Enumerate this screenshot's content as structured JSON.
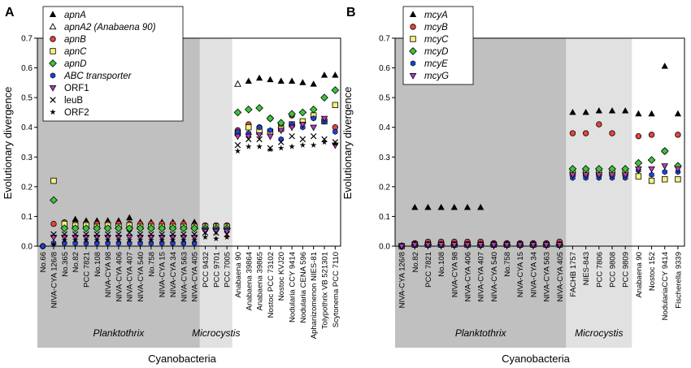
{
  "figure": {
    "x_axis_label": "Cyanobacteria",
    "y_axis_label": "Evolutionary divergence"
  },
  "chart_data": [
    {
      "panel_label": "A",
      "type": "scatter",
      "ylabel": "Evolutionary divergence",
      "xlabel": "Cyanobacteria",
      "ylim": [
        0,
        0.7
      ],
      "yticks": [
        "0.0",
        "0.1",
        "0.2",
        "0.3",
        "0.4",
        "0.5",
        "0.6",
        "0.7"
      ],
      "categories": [
        "No.66",
        "NIVA-CYA 126/8",
        "No.365",
        "No.82",
        "PCC 7821",
        "No.108",
        "NIVA-CYA 98",
        "NIVA-CYA 406",
        "NIVA-CYA 407",
        "NIVA-CYA 540",
        "No.758",
        "NIVA-CYA 15",
        "NIVA-CYA 34",
        "NIVA-CYA 563",
        "NIVA-CYA 405",
        "PCC 9432",
        "PCC 9701",
        "PCC 7005",
        "Anabaena 90",
        "Anabaena 39864",
        "Anabaena 39865",
        "Nostoc PCC 73102",
        "Nostoc KVJ20",
        "Nodularia CCY 9414",
        "Nodularia CENA 596",
        "Aphanizomenon NIES-81",
        "Tolypothrix VB 521301",
        "Scytonema PCC 7110"
      ],
      "groups": [
        {
          "label": "Planktothrix",
          "start": 0,
          "end": 14,
          "shade": "#c0c0c0"
        },
        {
          "label": "Microcystis",
          "start": 15,
          "end": 17,
          "shade": "#e1e1e1"
        }
      ],
      "legend": [
        "apnA",
        "apnA2 (Anabaena 90)",
        "apnB",
        "apnC",
        "apnD",
        "ABC transporter",
        "ORF1",
        "leuB",
        "ORF2"
      ],
      "series": [
        {
          "name": "apnA",
          "marker": "triangle",
          "color": "#000000",
          "values": [
            null,
            null,
            null,
            0.09,
            0.085,
            0.085,
            0.085,
            0.085,
            0.095,
            0.08,
            0.08,
            0.08,
            0.08,
            0.08,
            0.08,
            null,
            null,
            null,
            null,
            0.555,
            0.565,
            0.56,
            0.555,
            0.555,
            0.55,
            0.545,
            0.575,
            0.575
          ]
        },
        {
          "name": "apnA2",
          "label": "apnA2 (Anabaena 90)",
          "marker": "triangle-open",
          "color": "#000000",
          "values": [
            null,
            null,
            null,
            null,
            null,
            null,
            null,
            null,
            null,
            null,
            null,
            null,
            null,
            null,
            null,
            null,
            null,
            null,
            0.545,
            null,
            null,
            null,
            null,
            null,
            null,
            null,
            null,
            null
          ]
        },
        {
          "name": "apnB",
          "marker": "circle",
          "color": "#e8433f",
          "values": [
            0.0,
            0.075,
            0.08,
            0.075,
            0.075,
            0.075,
            0.075,
            0.075,
            0.075,
            0.075,
            0.075,
            0.075,
            0.075,
            0.075,
            0.07,
            0.07,
            0.07,
            0.07,
            0.39,
            0.41,
            0.4,
            0.43,
            0.41,
            0.44,
            0.42,
            0.44,
            0.42,
            0.4
          ]
        },
        {
          "name": "apnC",
          "marker": "square",
          "color": "#f5f37a",
          "values": [
            null,
            0.22,
            0.075,
            0.07,
            0.07,
            0.065,
            0.07,
            0.065,
            0.07,
            0.065,
            0.065,
            0.065,
            0.065,
            0.065,
            0.065,
            0.065,
            0.065,
            0.065,
            0.38,
            0.4,
            0.385,
            0.385,
            0.395,
            0.41,
            0.42,
            0.44,
            0.42,
            0.475
          ]
        },
        {
          "name": "apnD",
          "marker": "diamond",
          "color": "#3cc43c",
          "values": [
            null,
            0.155,
            0.06,
            0.06,
            0.06,
            0.06,
            0.06,
            0.06,
            0.06,
            0.06,
            0.06,
            0.06,
            0.06,
            0.06,
            0.06,
            0.06,
            0.06,
            0.06,
            0.45,
            0.46,
            0.465,
            0.43,
            0.415,
            0.445,
            0.45,
            0.46,
            0.5,
            0.525
          ]
        },
        {
          "name": "ABC transporter",
          "marker": "hexagon",
          "color": "#1f3fd6",
          "values": [
            0.0,
            0.01,
            0.01,
            0.01,
            0.01,
            0.01,
            0.01,
            0.01,
            0.01,
            0.01,
            0.01,
            0.01,
            0.01,
            0.01,
            0.01,
            0.055,
            0.055,
            0.055,
            0.385,
            0.38,
            0.4,
            0.39,
            0.36,
            0.41,
            0.4,
            0.43,
            0.42,
            0.385
          ]
        },
        {
          "name": "ORF1",
          "marker": "triangle-down",
          "color": "#b43cc0",
          "values": [
            null,
            0.03,
            0.03,
            0.03,
            0.03,
            0.03,
            0.03,
            0.03,
            0.03,
            0.03,
            0.03,
            0.03,
            0.03,
            0.03,
            0.03,
            0.05,
            0.05,
            0.05,
            0.37,
            0.37,
            0.375,
            0.37,
            0.39,
            0.4,
            0.41,
            0.4,
            0.43,
            0.34
          ]
        },
        {
          "name": "leuB",
          "marker": "x",
          "color": "#000000",
          "values": [
            null,
            0.04,
            0.04,
            0.04,
            0.04,
            0.04,
            0.04,
            0.04,
            0.045,
            0.04,
            0.04,
            0.04,
            0.04,
            0.04,
            0.04,
            0.045,
            0.045,
            0.04,
            0.34,
            0.36,
            0.36,
            0.33,
            0.35,
            0.37,
            0.36,
            0.37,
            0.36,
            0.35
          ]
        },
        {
          "name": "ORF2",
          "marker": "star",
          "color": "#000000",
          "values": [
            null,
            0.005,
            0.02,
            0.02,
            0.02,
            0.02,
            0.02,
            0.02,
            0.02,
            0.02,
            0.02,
            0.02,
            0.02,
            0.02,
            0.02,
            0.03,
            0.025,
            0.03,
            0.32,
            0.335,
            0.335,
            0.325,
            0.33,
            0.335,
            0.34,
            0.34,
            0.35,
            0.345
          ]
        }
      ]
    },
    {
      "panel_label": "B",
      "type": "scatter",
      "ylabel": "Evolutionary divergence",
      "xlabel": "Cyanobacteria",
      "ylim": [
        0,
        0.7
      ],
      "yticks": [
        "0.0",
        "0.1",
        "0.2",
        "0.3",
        "0.4",
        "0.5",
        "0.6",
        "0.7"
      ],
      "categories": [
        "NIVA-CYA 126/8",
        "No.82",
        "PCC 7821",
        "No.108",
        "NIVA-CYA 98",
        "NIVA-CYA 406",
        "NIVA-CYA 407",
        "NIVA-CYA 540",
        "No.758",
        "NIVA-CYA 15",
        "NIVA-CYA 34",
        "NIVA-CYA 563",
        "NIVA-CYA 405",
        "FACHB 1757",
        "NIES-843",
        "PCC 7806",
        "PCC 9808",
        "PCC 9809",
        "Anabaena 90",
        "Nostoc 152",
        "NodulariaCCY 9414",
        "Fischerella 9339"
      ],
      "groups": [
        {
          "label": "Planktothrix",
          "start": 0,
          "end": 12,
          "shade": "#c0c0c0"
        },
        {
          "label": "Microcystis",
          "start": 13,
          "end": 17,
          "shade": "#e1e1e1"
        }
      ],
      "legend": [
        "mcyA",
        "mcyB",
        "mcyC",
        "mcyD",
        "mcyE",
        "mcyG"
      ],
      "series": [
        {
          "name": "mcyA",
          "marker": "triangle",
          "color": "#000000",
          "values": [
            null,
            0.13,
            0.13,
            0.13,
            0.13,
            0.13,
            0.13,
            null,
            null,
            null,
            null,
            null,
            null,
            0.45,
            0.45,
            0.455,
            0.455,
            0.455,
            0.445,
            0.445,
            0.605,
            0.445
          ]
        },
        {
          "name": "mcyB",
          "marker": "circle",
          "color": "#e8433f",
          "values": [
            0.0,
            0.01,
            0.015,
            0.015,
            0.015,
            0.015,
            0.015,
            0.01,
            0.01,
            0.01,
            0.01,
            0.01,
            0.015,
            0.38,
            0.38,
            0.41,
            0.38,
            null,
            0.37,
            0.375,
            0.32,
            0.375
          ]
        },
        {
          "name": "mcyC",
          "marker": "square",
          "color": "#f5f37a",
          "values": [
            0.0,
            0.005,
            0.005,
            0.005,
            0.005,
            0.005,
            0.005,
            0.005,
            0.005,
            0.005,
            0.005,
            0.005,
            0.005,
            0.245,
            0.245,
            0.245,
            0.245,
            0.245,
            0.235,
            0.22,
            0.225,
            0.225
          ]
        },
        {
          "name": "mcyD",
          "marker": "diamond",
          "color": "#3cc43c",
          "values": [
            0.0,
            0.005,
            0.005,
            0.005,
            0.005,
            0.005,
            0.005,
            0.005,
            0.005,
            0.005,
            0.005,
            0.005,
            0.005,
            0.26,
            0.26,
            0.26,
            0.26,
            0.26,
            0.28,
            0.29,
            0.32,
            0.27
          ]
        },
        {
          "name": "mcyE",
          "marker": "hexagon",
          "color": "#1f3fd6",
          "values": [
            0.0,
            0.005,
            0.005,
            0.005,
            0.005,
            0.005,
            0.005,
            0.005,
            0.005,
            0.005,
            0.005,
            0.005,
            0.005,
            0.23,
            0.23,
            0.23,
            0.23,
            0.23,
            0.255,
            0.24,
            0.25,
            0.25
          ]
        },
        {
          "name": "mcyG",
          "marker": "triangle-down",
          "color": "#b43cc0",
          "values": [
            0.0,
            0.005,
            0.005,
            0.005,
            0.005,
            0.005,
            0.005,
            0.005,
            0.005,
            0.005,
            0.005,
            0.005,
            0.005,
            0.24,
            0.24,
            0.24,
            0.24,
            0.24,
            0.26,
            0.26,
            0.27,
            0.26
          ]
        }
      ]
    }
  ]
}
